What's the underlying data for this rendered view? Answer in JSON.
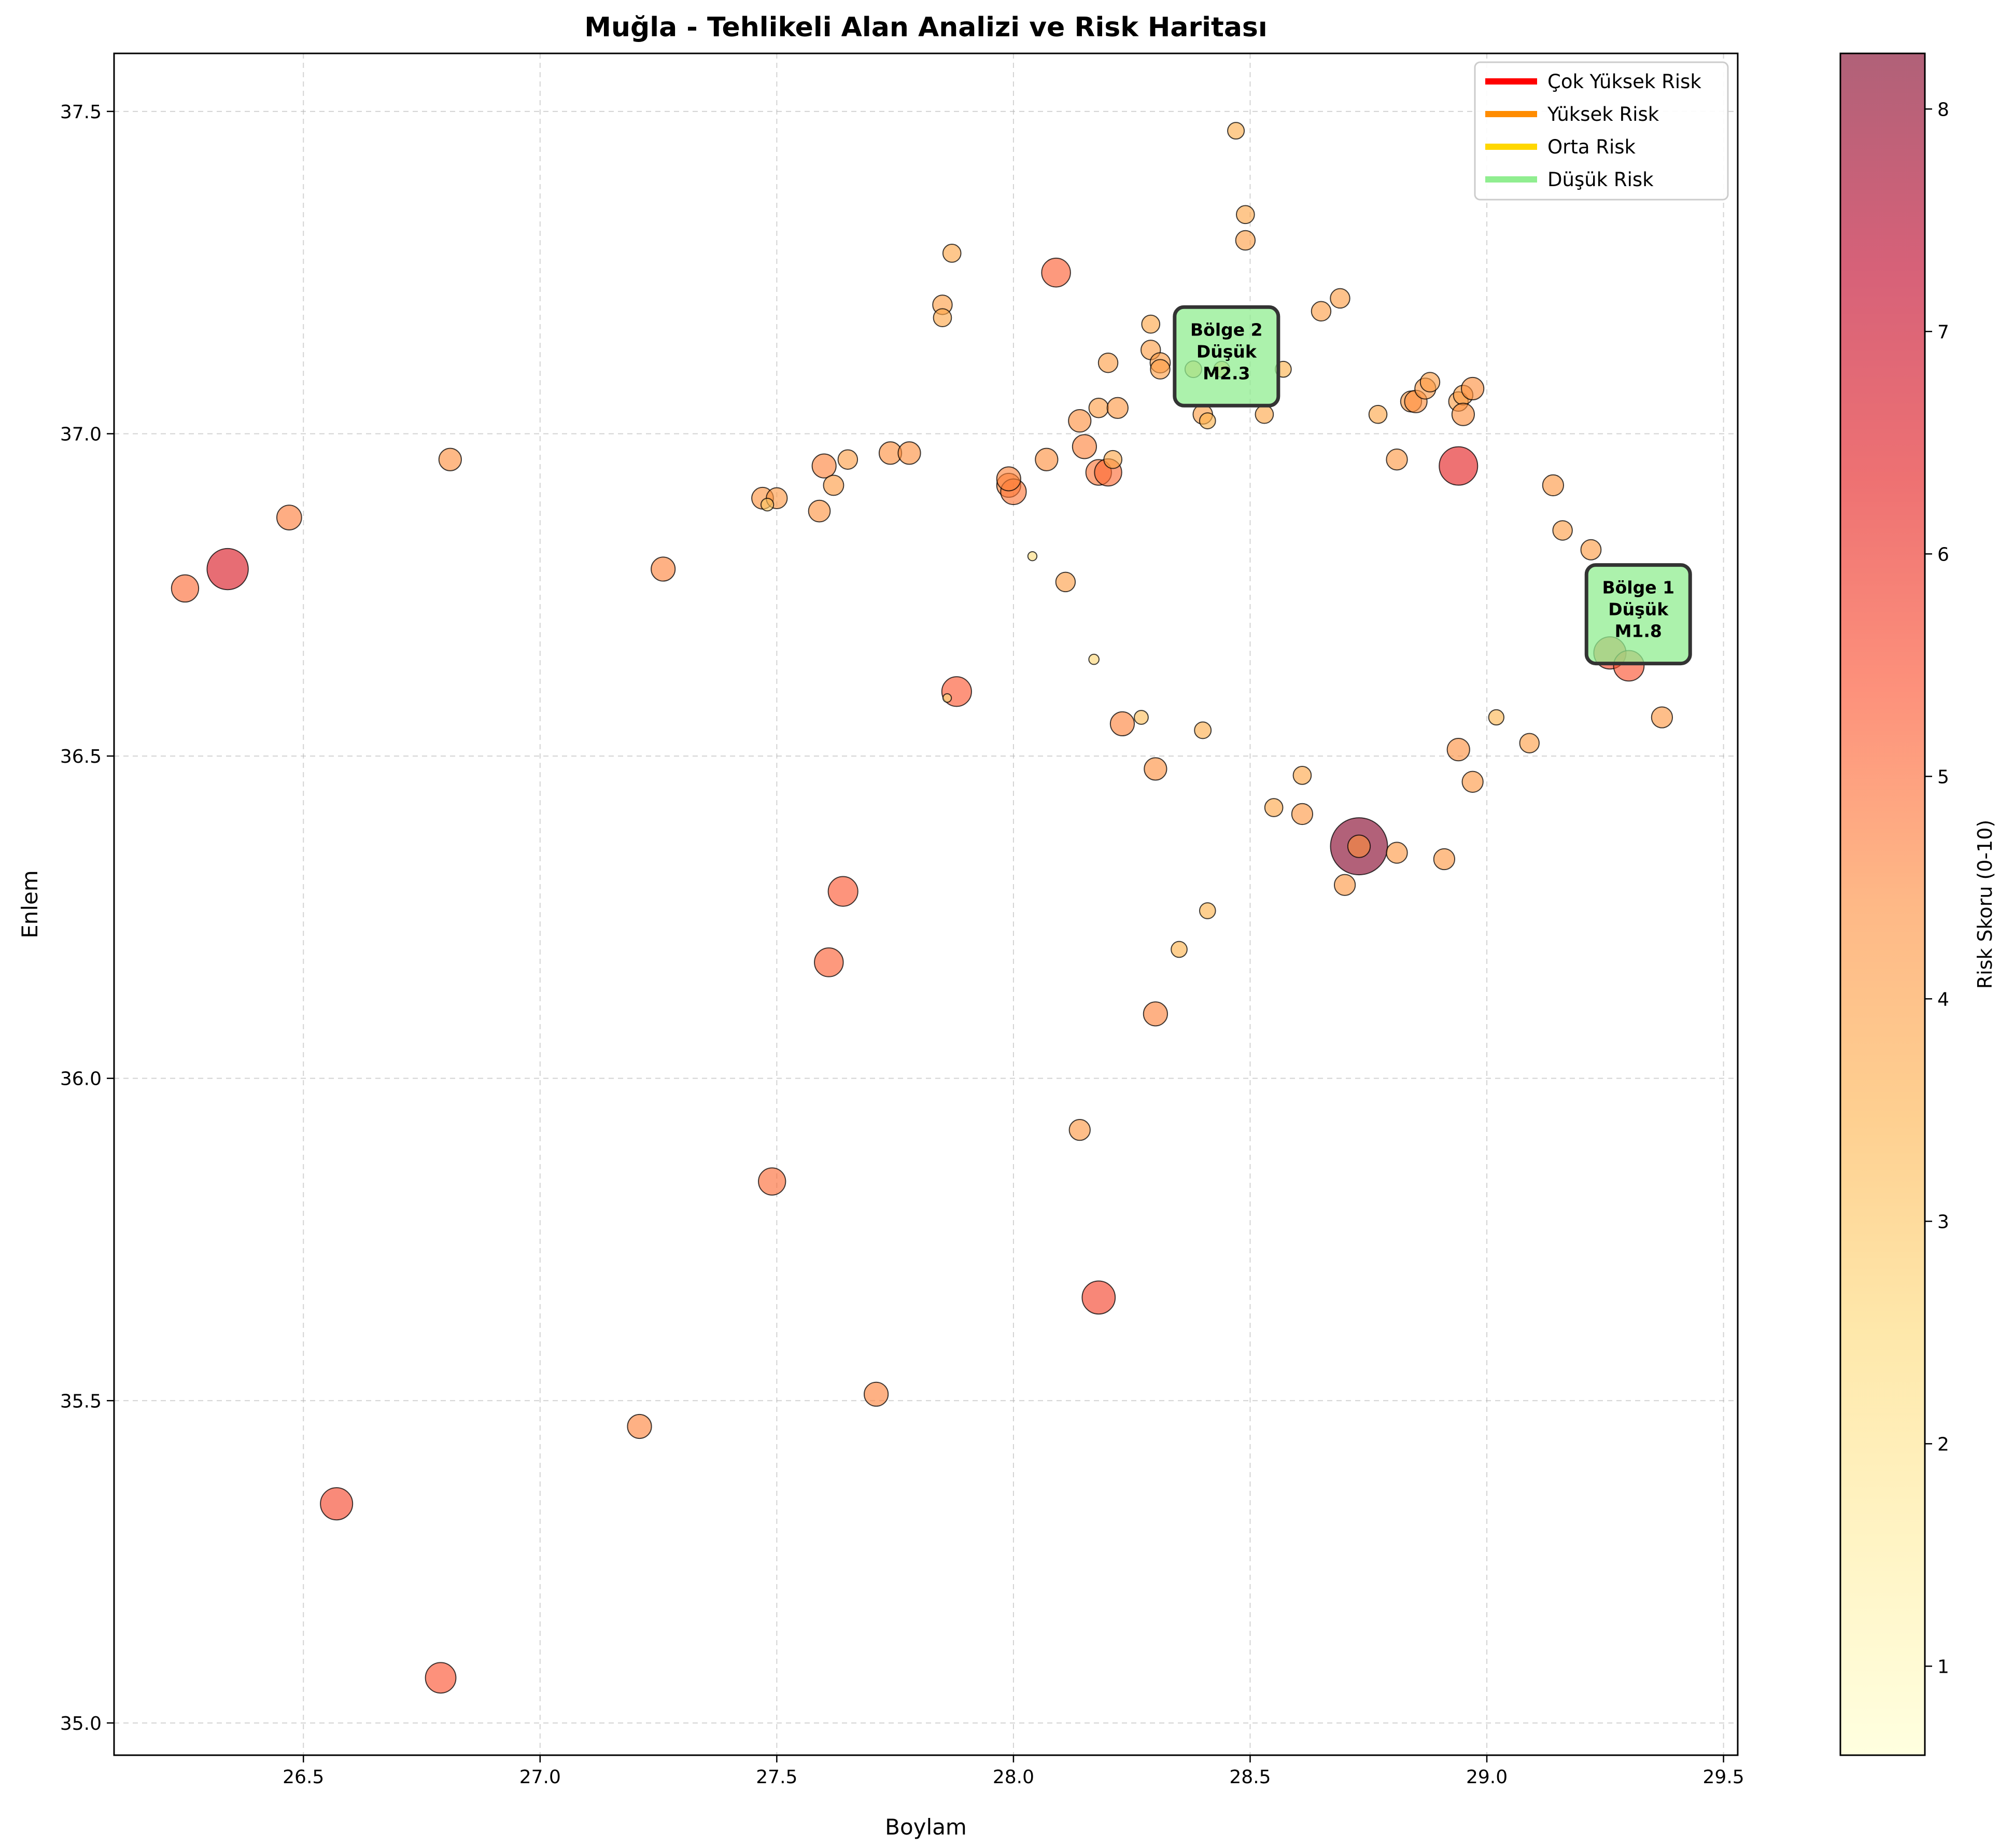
{
  "chart_data": {
    "type": "scatter",
    "title": "Muğla - Tehlikeli Alan Analizi ve Risk Haritası",
    "xlabel": "Boylam",
    "ylabel": "Enlem",
    "xlim": [
      26.1,
      29.53
    ],
    "ylim": [
      34.95,
      37.59
    ],
    "xticks": [
      26.5,
      27.0,
      27.5,
      28.0,
      28.5,
      29.0,
      29.5
    ],
    "yticks": [
      35.0,
      35.5,
      36.0,
      36.5,
      37.0,
      37.5
    ],
    "xtick_labels": [
      "26.5",
      "27.0",
      "27.5",
      "28.0",
      "28.5",
      "29.0",
      "29.5"
    ],
    "ytick_labels": [
      "35.0",
      "35.5",
      "36.0",
      "36.5",
      "37.0",
      "37.5"
    ],
    "grid": true,
    "legend_position": "top-right",
    "legend": [
      {
        "label": "Çok Yüksek Risk",
        "color": "#ff0000"
      },
      {
        "label": "Yüksek Risk",
        "color": "#ff8c00"
      },
      {
        "label": "Orta Risk",
        "color": "#ffd700"
      },
      {
        "label": "Düşük Risk",
        "color": "#90ee90"
      }
    ],
    "colorbar": {
      "label": "Risk Skoru (0-10)",
      "min": 0.6,
      "max": 8.25,
      "ticks": [
        1,
        2,
        3,
        4,
        5,
        6,
        7,
        8
      ],
      "tick_labels": [
        "1",
        "2",
        "3",
        "4",
        "5",
        "6",
        "7",
        "8"
      ],
      "colormap": [
        "#ffffcc",
        "#ffeda0",
        "#fed976",
        "#feb24c",
        "#fd8d3c",
        "#fc4e2a",
        "#e31a1c",
        "#bd0026",
        "#800026"
      ]
    },
    "annotations": [
      {
        "lines": [
          "Bölge 2",
          "Düşük",
          "M2.3"
        ],
        "x": 28.45,
        "y": 37.12
      },
      {
        "lines": [
          "Bölge 1",
          "Düşük",
          "M1.8"
        ],
        "x": 29.32,
        "y": 36.72
      }
    ],
    "point_fields": [
      "lon",
      "lat",
      "risk"
    ],
    "points": [
      [
        26.34,
        36.79,
        6.6
      ],
      [
        26.25,
        36.76,
        5.0
      ],
      [
        26.47,
        36.87,
        4.7
      ],
      [
        26.81,
        36.96,
        4.4
      ],
      [
        27.26,
        36.79,
        4.6
      ],
      [
        27.47,
        36.9,
        4.3
      ],
      [
        27.5,
        36.9,
        4.2
      ],
      [
        27.48,
        36.89,
        3.0
      ],
      [
        27.6,
        36.95,
        4.6
      ],
      [
        27.62,
        36.92,
        4.1
      ],
      [
        27.65,
        36.96,
        4.0
      ],
      [
        27.59,
        36.88,
        4.3
      ],
      [
        27.74,
        36.97,
        4.4
      ],
      [
        27.78,
        36.97,
        4.4
      ],
      [
        27.85,
        37.2,
        4.0
      ],
      [
        27.85,
        37.18,
        3.8
      ],
      [
        27.87,
        37.28,
        3.8
      ],
      [
        28.09,
        37.25,
        5.2
      ],
      [
        27.99,
        36.92,
        4.6
      ],
      [
        28.0,
        36.91,
        4.8
      ],
      [
        27.99,
        36.93,
        4.6
      ],
      [
        28.07,
        36.96,
        4.4
      ],
      [
        28.14,
        37.02,
        4.4
      ],
      [
        28.15,
        36.98,
        4.6
      ],
      [
        28.18,
        37.04,
        4.0
      ],
      [
        28.18,
        36.94,
        4.8
      ],
      [
        28.2,
        36.94,
        5.0
      ],
      [
        28.21,
        36.96,
        3.8
      ],
      [
        28.2,
        37.11,
        4.0
      ],
      [
        28.22,
        37.04,
        4.2
      ],
      [
        28.29,
        37.13,
        4.0
      ],
      [
        28.31,
        37.11,
        4.1
      ],
      [
        28.31,
        37.1,
        4.0
      ],
      [
        28.29,
        37.17,
        3.8
      ],
      [
        28.4,
        37.03,
        4.0
      ],
      [
        28.41,
        37.02,
        3.5
      ],
      [
        28.47,
        37.47,
        3.6
      ],
      [
        28.49,
        37.34,
        3.8
      ],
      [
        28.49,
        37.3,
        4.0
      ],
      [
        28.53,
        37.03,
        3.8
      ],
      [
        28.57,
        37.1,
        3.5
      ],
      [
        28.38,
        37.1,
        3.6
      ],
      [
        28.44,
        37.1,
        3.5
      ],
      [
        28.65,
        37.19,
        4.0
      ],
      [
        28.69,
        37.21,
        4.0
      ],
      [
        28.77,
        37.03,
        3.8
      ],
      [
        28.81,
        36.96,
        4.2
      ],
      [
        28.84,
        37.05,
        4.2
      ],
      [
        28.85,
        37.05,
        4.4
      ],
      [
        28.87,
        37.07,
        4.2
      ],
      [
        28.88,
        37.08,
        4.0
      ],
      [
        28.94,
        37.05,
        4.0
      ],
      [
        28.95,
        37.06,
        4.0
      ],
      [
        28.97,
        37.07,
        4.4
      ],
      [
        28.95,
        37.03,
        4.4
      ],
      [
        28.94,
        36.95,
        6.3
      ],
      [
        29.14,
        36.92,
        4.2
      ],
      [
        29.16,
        36.85,
        4.0
      ],
      [
        29.22,
        36.82,
        4.1
      ],
      [
        29.26,
        36.66,
        5.6
      ],
      [
        29.3,
        36.64,
        5.4
      ],
      [
        29.37,
        36.56,
        4.2
      ],
      [
        29.09,
        36.52,
        4.0
      ],
      [
        29.02,
        36.56,
        3.4
      ],
      [
        28.94,
        36.51,
        4.4
      ],
      [
        28.97,
        36.46,
        4.2
      ],
      [
        28.04,
        36.81,
        2.4
      ],
      [
        28.11,
        36.77,
        4.0
      ],
      [
        28.17,
        36.65,
        2.6
      ],
      [
        27.88,
        36.6,
        5.3
      ],
      [
        27.86,
        36.59,
        2.3
      ],
      [
        28.23,
        36.55,
        4.6
      ],
      [
        28.27,
        36.56,
        3.2
      ],
      [
        28.4,
        36.54,
        3.6
      ],
      [
        28.3,
        36.48,
        4.4
      ],
      [
        28.61,
        36.47,
        3.8
      ],
      [
        28.55,
        36.42,
        3.8
      ],
      [
        28.61,
        36.41,
        4.2
      ],
      [
        28.73,
        36.36,
        8.2
      ],
      [
        28.73,
        36.36,
        4.4
      ],
      [
        28.81,
        36.35,
        4.2
      ],
      [
        28.91,
        36.34,
        4.2
      ],
      [
        28.7,
        36.3,
        4.2
      ],
      [
        28.41,
        36.26,
        3.5
      ],
      [
        28.35,
        36.2,
        3.5
      ],
      [
        28.3,
        36.1,
        4.6
      ],
      [
        27.64,
        36.29,
        5.3
      ],
      [
        27.61,
        36.18,
        5.2
      ],
      [
        28.14,
        35.92,
        4.2
      ],
      [
        27.49,
        35.84,
        5.0
      ],
      [
        28.18,
        35.66,
        5.7
      ],
      [
        27.71,
        35.51,
        4.6
      ],
      [
        27.21,
        35.46,
        4.6
      ],
      [
        26.57,
        35.34,
        5.6
      ],
      [
        26.79,
        35.07,
        5.4
      ]
    ]
  }
}
